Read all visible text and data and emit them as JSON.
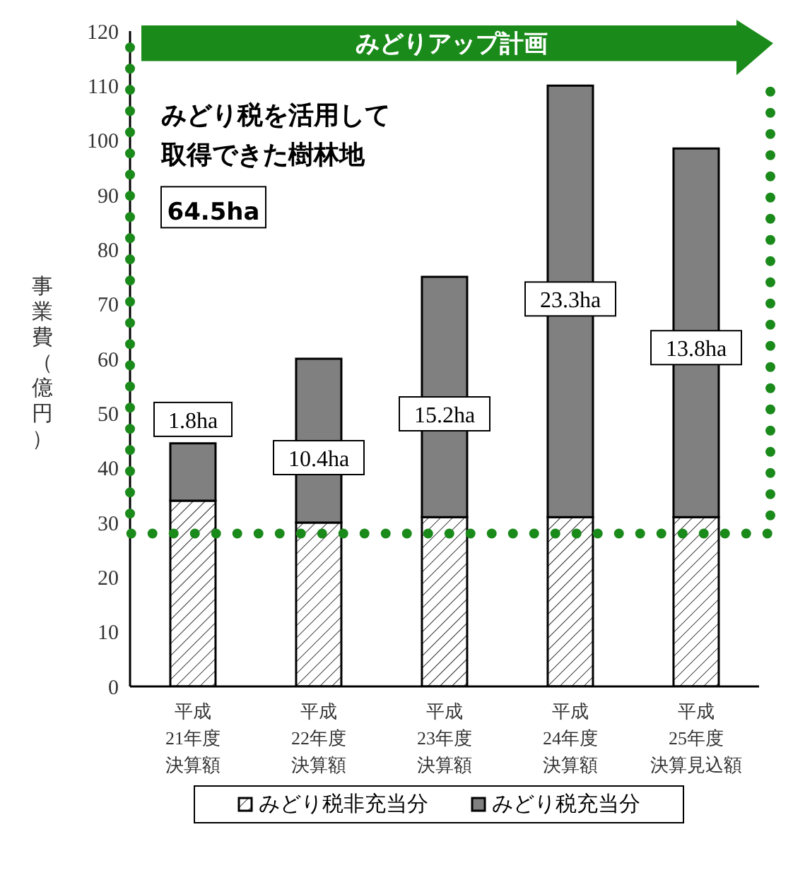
{
  "chart_data": {
    "type": "bar",
    "stacked": true,
    "ylabel": "事業費（億円）",
    "categories": [
      "平成21年度決算額",
      "平成22年度決算額",
      "平成23年度決算額",
      "平成24年度決算額",
      "平成25年度決算見込額"
    ],
    "series": [
      {
        "name": "みどり税非充当分",
        "color": "#000000",
        "values": [
          34,
          30,
          31,
          31,
          31
        ]
      },
      {
        "name": "みどり税充当分",
        "color": "#808080",
        "values": [
          10.5,
          30,
          44,
          79,
          67.5
        ]
      }
    ],
    "ylim": [
      0,
      120
    ],
    "yticks": [
      0,
      10,
      20,
      30,
      40,
      50,
      60,
      70,
      80,
      90,
      100,
      110,
      120
    ],
    "legend": "bottom",
    "annotations": [
      "みどりアップ計画",
      "みどり税を活用して取得できた樹林地",
      "64.5ha",
      "1.8ha",
      "10.4ha",
      "15.2ha",
      "23.3ha",
      "13.8ha"
    ]
  }
}
